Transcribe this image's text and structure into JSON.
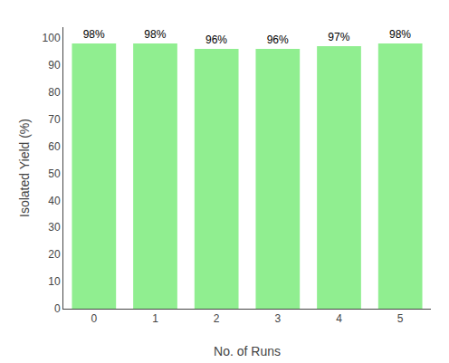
{
  "chart_data": {
    "type": "bar",
    "categories": [
      0,
      1,
      2,
      3,
      4,
      5
    ],
    "values": [
      98,
      98,
      96,
      96,
      97,
      98
    ],
    "value_labels": [
      "98%",
      "98%",
      "96%",
      "96%",
      "97%",
      "98%"
    ],
    "data_labels": true,
    "color": "#90EE90",
    "xlabel": "No. of Runs",
    "ylabel": "Isolated Yield (%)",
    "ylim": [
      0,
      104
    ],
    "yticks": [
      0,
      10,
      20,
      30,
      40,
      50,
      60,
      70,
      80,
      90,
      100
    ],
    "grid": false
  }
}
